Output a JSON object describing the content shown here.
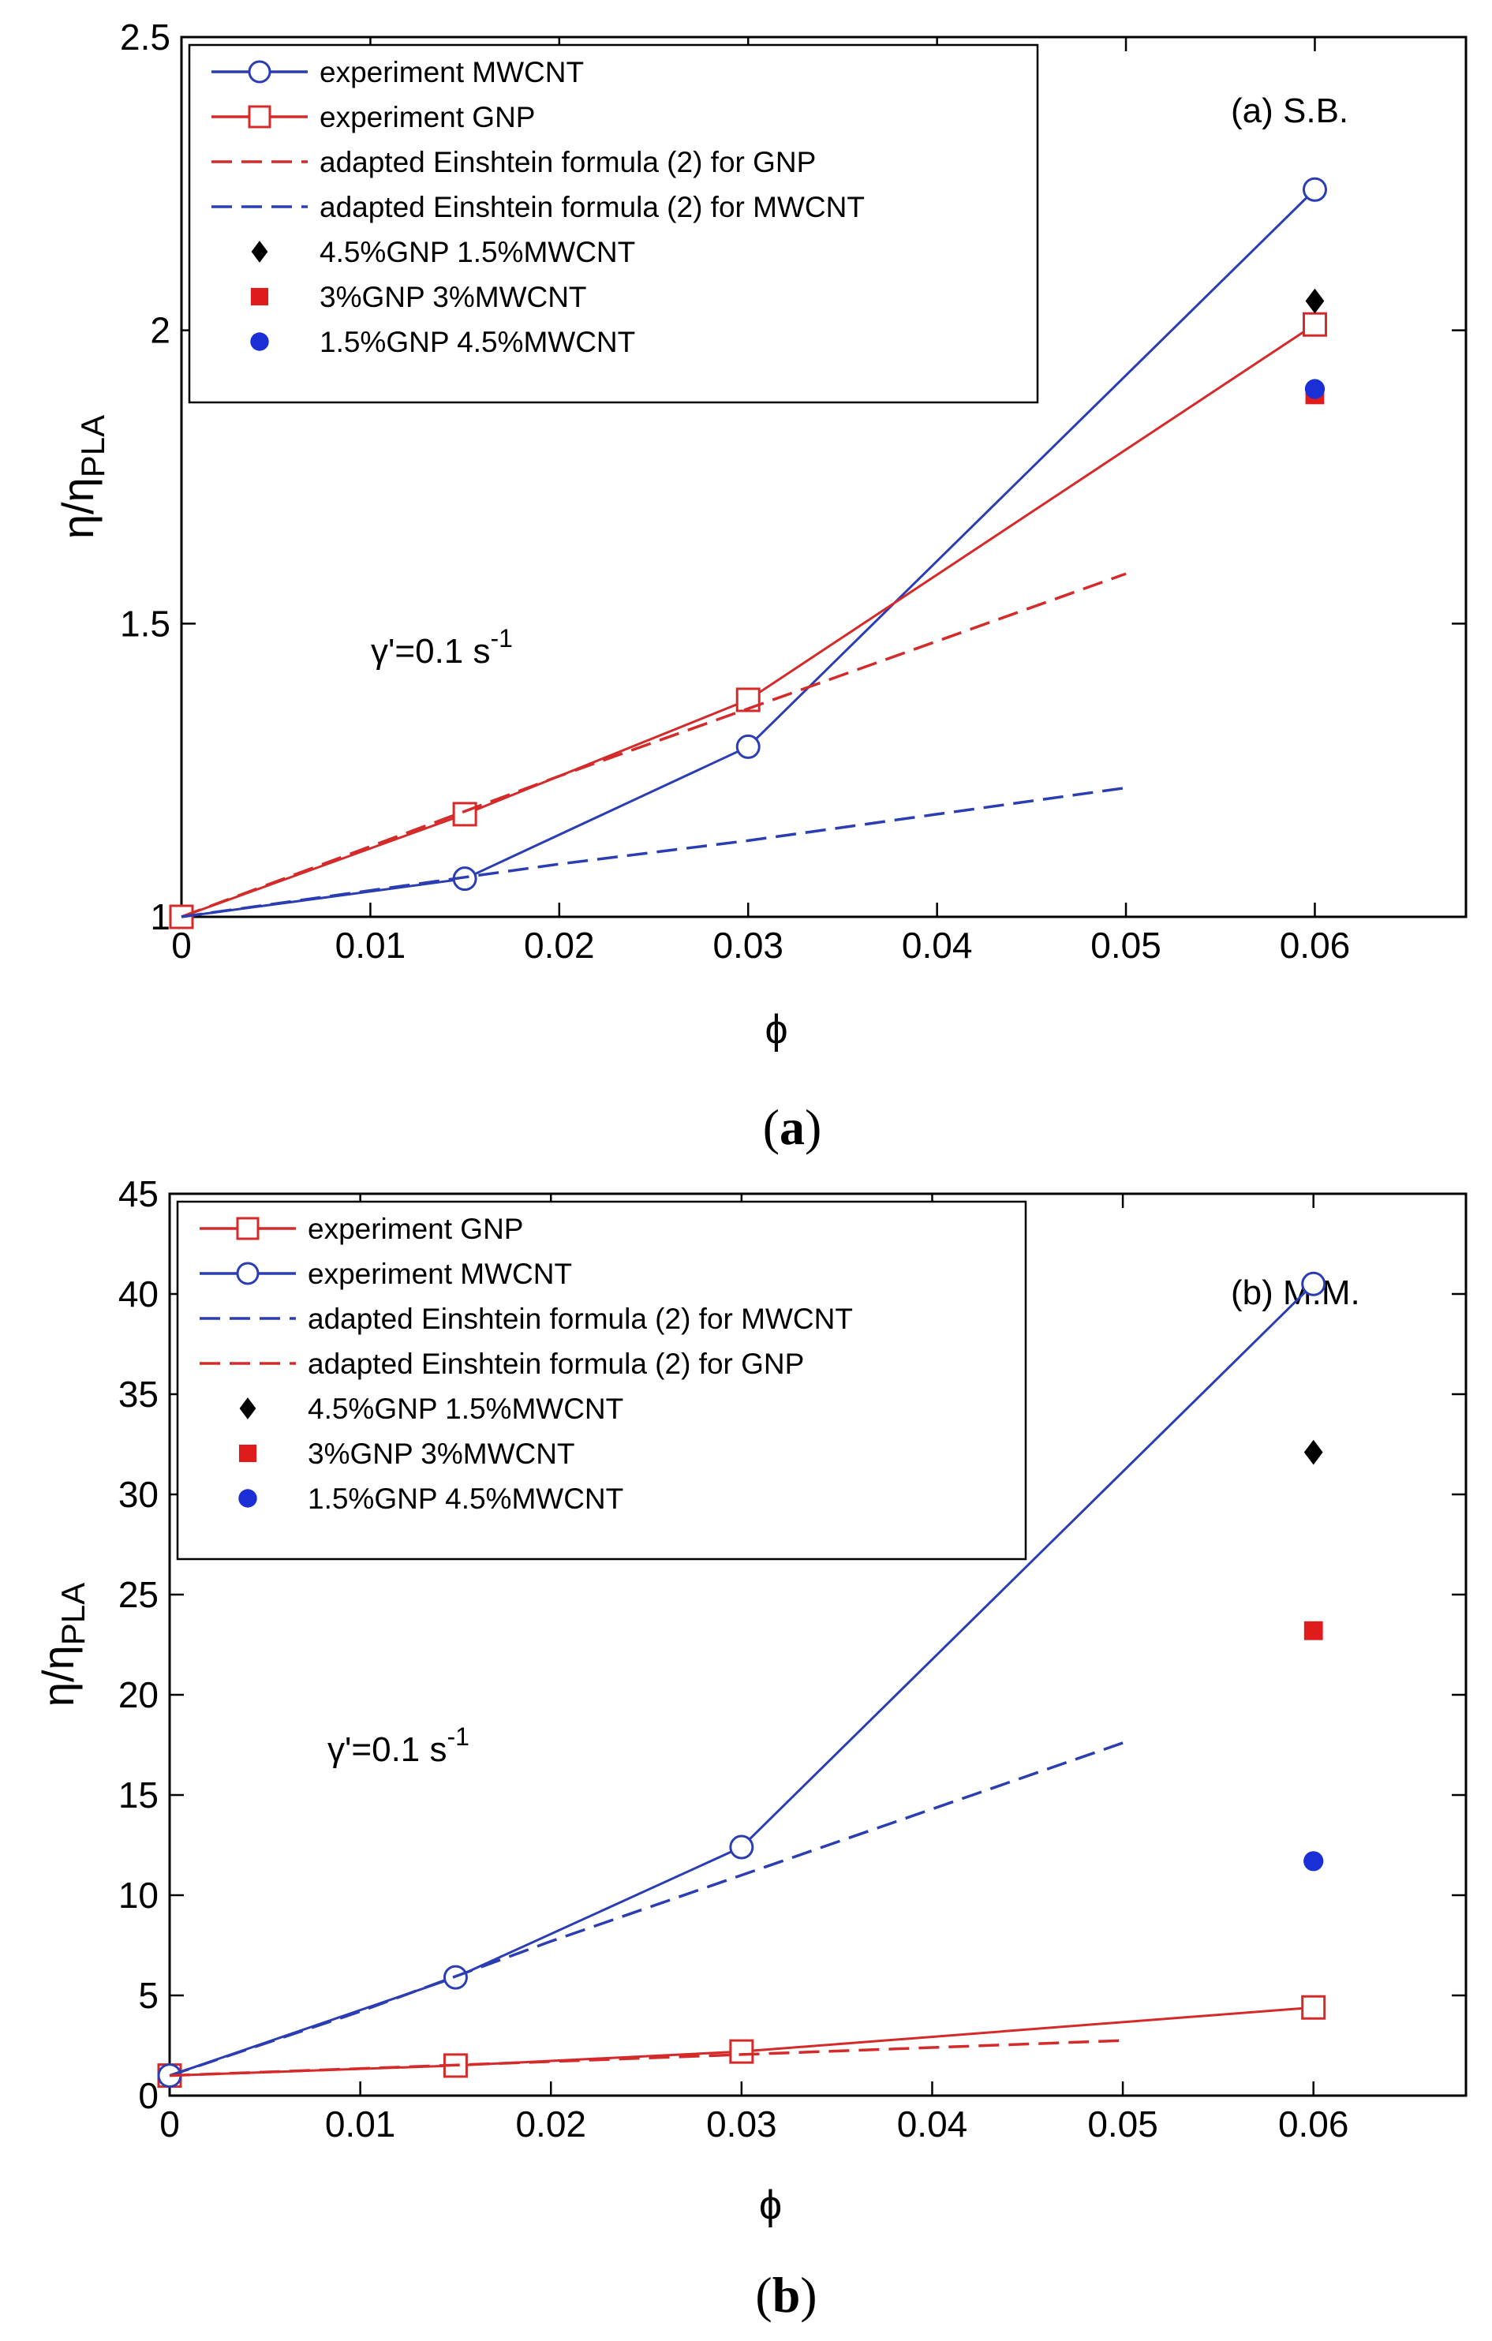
{
  "chart_data": [
    {
      "type": "line",
      "panel_label": "(a) S.B.",
      "caption": "(a)",
      "annotation": "γ'=0.1 s",
      "annotation_sup": "-1",
      "xlabel": "ϕ",
      "ylabel": "η/η",
      "ylabel_sub": "PLA",
      "xlim": [
        0,
        0.068
      ],
      "ylim": [
        1,
        2.5
      ],
      "xticks": [
        0,
        0.01,
        0.02,
        0.03,
        0.04,
        0.05,
        0.06
      ],
      "xtick_labels": [
        "0",
        "0.01",
        "0.02",
        "0.03",
        "0.04",
        "0.05",
        "0.06"
      ],
      "yticks": [
        1,
        1.5,
        2,
        2.5
      ],
      "ytick_labels": [
        "1",
        "1.5",
        "2",
        "2.5"
      ],
      "grid": false,
      "legend_position": "top-left",
      "series": [
        {
          "name": "experiment MWCNT",
          "color": "#2a3db3",
          "style": "solid",
          "marker": "circle",
          "x": [
            0,
            0.015,
            0.03,
            0.06
          ],
          "y": [
            1.0,
            1.065,
            1.29,
            2.24
          ]
        },
        {
          "name": "experiment GNP",
          "color": "#d42a2a",
          "style": "solid",
          "marker": "square",
          "x": [
            0,
            0.015,
            0.03,
            0.06
          ],
          "y": [
            1.0,
            1.175,
            1.37,
            2.01
          ]
        },
        {
          "name": "adapted Einshtein formula (2) for GNP",
          "color": "#d42a2a",
          "style": "dashed",
          "marker": "none",
          "x": [
            0,
            0.01,
            0.02,
            0.03,
            0.04,
            0.05
          ],
          "y": [
            1.0,
            1.12,
            1.24,
            1.355,
            1.47,
            1.585
          ]
        },
        {
          "name": "adapted Einshtein  formula (2) for MWCNT",
          "color": "#2a3db3",
          "style": "dashed",
          "marker": "none",
          "x": [
            0,
            0.01,
            0.02,
            0.03,
            0.04,
            0.05
          ],
          "y": [
            1.0,
            1.045,
            1.09,
            1.13,
            1.175,
            1.22
          ]
        },
        {
          "name": "4.5%GNP 1.5%MWCNT",
          "color": "#000000",
          "style": "none",
          "marker": "diamond",
          "x": [
            0.06
          ],
          "y": [
            2.05
          ]
        },
        {
          "name": "3%GNP 3%MWCNT",
          "color": "#e01b1b",
          "style": "none",
          "marker": "filled-square",
          "x": [
            0.06
          ],
          "y": [
            1.89
          ]
        },
        {
          "name": "1.5%GNP 4.5%MWCNT",
          "color": "#1a2fd6",
          "style": "none",
          "marker": "filled-circle",
          "x": [
            0.06
          ],
          "y": [
            1.9
          ]
        }
      ]
    },
    {
      "type": "line",
      "panel_label": "(b) M.M.",
      "caption": "(b)",
      "annotation": "γ'=0.1 s",
      "annotation_sup": "-1",
      "xlabel": "ϕ",
      "ylabel": "η/η",
      "ylabel_sub": "PLA",
      "xlim": [
        0,
        0.068
      ],
      "ylim": [
        0,
        45
      ],
      "xticks": [
        0,
        0.01,
        0.02,
        0.03,
        0.04,
        0.05,
        0.06
      ],
      "xtick_labels": [
        "0",
        "0.01",
        "0.02",
        "0.03",
        "0.04",
        "0.05",
        "0.06"
      ],
      "yticks": [
        0,
        5,
        10,
        15,
        20,
        25,
        30,
        35,
        40,
        45
      ],
      "ytick_labels": [
        "0",
        "5",
        "10",
        "15",
        "20",
        "25",
        "30",
        "35",
        "40",
        "45"
      ],
      "grid": false,
      "legend_position": "top-left",
      "series": [
        {
          "name": "experiment GNP",
          "color": "#d42a2a",
          "style": "solid",
          "marker": "square",
          "x": [
            0,
            0.015,
            0.03,
            0.06
          ],
          "y": [
            1.0,
            1.5,
            2.2,
            4.4
          ]
        },
        {
          "name": "experiment MWCNT",
          "color": "#2a3db3",
          "style": "solid",
          "marker": "circle",
          "x": [
            0,
            0.015,
            0.03,
            0.06
          ],
          "y": [
            1.0,
            5.9,
            12.4,
            40.5
          ]
        },
        {
          "name": "adapted Einshtein formula (2) for MWCNT",
          "color": "#2a3db3",
          "style": "dashed",
          "marker": "none",
          "x": [
            0,
            0.01,
            0.02,
            0.03,
            0.04,
            0.05
          ],
          "y": [
            1.0,
            4.2,
            7.7,
            11.0,
            14.3,
            17.6
          ]
        },
        {
          "name": "adapted Einshtein formula (2) for GNP",
          "color": "#d42a2a",
          "style": "dashed",
          "marker": "none",
          "x": [
            0,
            0.01,
            0.02,
            0.03,
            0.04,
            0.05
          ],
          "y": [
            1.0,
            1.35,
            1.7,
            2.05,
            2.4,
            2.75
          ]
        },
        {
          "name": "4.5%GNP 1.5%MWCNT",
          "color": "#000000",
          "style": "none",
          "marker": "diamond",
          "x": [
            0.06
          ],
          "y": [
            32.1
          ]
        },
        {
          "name": "3%GNP 3%MWCNT",
          "color": "#e01b1b",
          "style": "none",
          "marker": "filled-square",
          "x": [
            0.06
          ],
          "y": [
            23.2
          ]
        },
        {
          "name": "1.5%GNP 4.5%MWCNT",
          "color": "#1a2fd6",
          "style": "none",
          "marker": "filled-circle",
          "x": [
            0.06
          ],
          "y": [
            11.7
          ]
        }
      ]
    }
  ]
}
